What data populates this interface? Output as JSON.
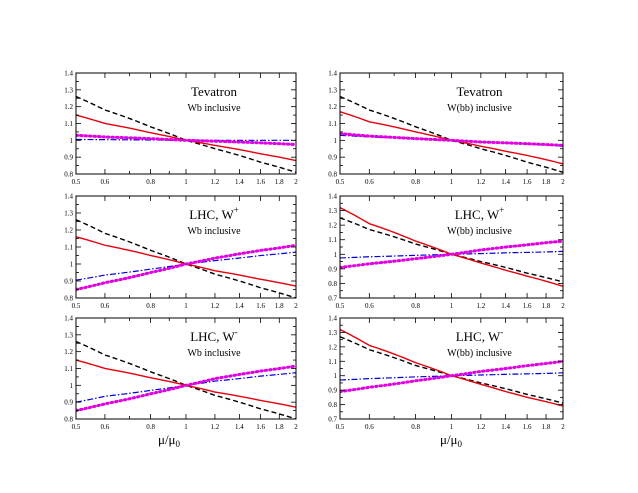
{
  "x_axis_label": "μ/μ0",
  "x_axis_main": "μ/μ",
  "x_axis_sub": "0",
  "chart_data": [
    {
      "type": "line",
      "title": "Tevatron",
      "title_sup": "",
      "subtitle": "Wb inclusive",
      "xlim": [
        0.5,
        2
      ],
      "ylim": [
        0.8,
        1.4
      ],
      "xticks": [
        "0.5",
        "0.6",
        "0.8",
        "1",
        "1.2",
        "1.4",
        "1.6",
        "1.8",
        "2"
      ],
      "yticks": [
        "0.8",
        "0.9",
        "1",
        "1.1",
        "1.2",
        "1.3",
        "1.4"
      ],
      "x": [
        0.5,
        0.6,
        0.8,
        1.0,
        1.2,
        1.4,
        1.6,
        1.8,
        2.0
      ],
      "series": [
        {
          "name": "black dashed",
          "color": "#000000",
          "dash": "5,3",
          "width": 1.4,
          "values": [
            1.26,
            1.18,
            1.08,
            1.0,
            0.95,
            0.91,
            0.87,
            0.84,
            0.81
          ]
        },
        {
          "name": "red solid",
          "color": "#e8000b",
          "dash": "",
          "width": 1.4,
          "values": [
            1.15,
            1.1,
            1.045,
            1.0,
            0.97,
            0.945,
            0.92,
            0.9,
            0.88
          ]
        },
        {
          "name": "blue dash-dot",
          "color": "#0000e0",
          "dash": "6,2,1.5,2",
          "width": 1.2,
          "values": [
            1.005,
            1.004,
            1.002,
            1.0,
            1.0,
            1.0,
            1.0,
            1.0,
            1.0
          ]
        },
        {
          "name": "magenta dotted",
          "color": "#e000e0",
          "dash": "1.5,3",
          "width": 3,
          "values": [
            1.03,
            1.02,
            1.01,
            1.0,
            0.995,
            0.99,
            0.985,
            0.98,
            0.975
          ]
        }
      ]
    },
    {
      "type": "line",
      "title": "Tevatron",
      "title_sup": "",
      "subtitle": "W(bb) inclusive",
      "xlim": [
        0.5,
        2
      ],
      "ylim": [
        0.8,
        1.4
      ],
      "xticks": [
        "0.5",
        "0.6",
        "0.8",
        "1",
        "1.2",
        "1.4",
        "1.6",
        "1.8",
        "2"
      ],
      "yticks": [
        "0.8",
        "0.9",
        "1",
        "1.1",
        "1.2",
        "1.3",
        "1.4"
      ],
      "x": [
        0.5,
        0.6,
        0.8,
        1.0,
        1.2,
        1.4,
        1.6,
        1.8,
        2.0
      ],
      "series": [
        {
          "name": "black dashed",
          "color": "#000000",
          "dash": "5,3",
          "width": 1.4,
          "values": [
            1.26,
            1.18,
            1.08,
            1.0,
            0.95,
            0.91,
            0.87,
            0.84,
            0.81
          ]
        },
        {
          "name": "red solid",
          "color": "#e8000b",
          "dash": "",
          "width": 1.4,
          "values": [
            1.17,
            1.11,
            1.05,
            1.0,
            0.965,
            0.935,
            0.91,
            0.885,
            0.86
          ]
        },
        {
          "name": "blue dash-dot",
          "color": "#0000e0",
          "dash": "6,2,1.5,2",
          "width": 1.2,
          "values": [
            1.03,
            1.02,
            1.01,
            1.0,
            0.99,
            0.985,
            0.978,
            0.972,
            0.965
          ]
        },
        {
          "name": "magenta dotted",
          "color": "#e000e0",
          "dash": "1.5,3",
          "width": 3,
          "values": [
            1.04,
            1.025,
            1.01,
            1.0,
            0.99,
            0.985,
            0.98,
            0.975,
            0.97
          ]
        }
      ]
    },
    {
      "type": "line",
      "title": "LHC, W",
      "title_sup": "+",
      "subtitle": "Wb inclusive",
      "xlim": [
        0.5,
        2
      ],
      "ylim": [
        0.8,
        1.4
      ],
      "xticks": [
        "0.5",
        "0.6",
        "0.8",
        "1",
        "1.2",
        "1.4",
        "1.6",
        "1.8",
        "2"
      ],
      "yticks": [
        "0.8",
        "0.9",
        "1",
        "1.1",
        "1.2",
        "1.3",
        "1.4"
      ],
      "x": [
        0.5,
        0.6,
        0.8,
        1.0,
        1.2,
        1.4,
        1.6,
        1.8,
        2.0
      ],
      "series": [
        {
          "name": "black dashed",
          "color": "#000000",
          "dash": "5,3",
          "width": 1.4,
          "values": [
            1.26,
            1.18,
            1.08,
            1.0,
            0.94,
            0.9,
            0.86,
            0.83,
            0.8
          ]
        },
        {
          "name": "red solid",
          "color": "#e8000b",
          "dash": "",
          "width": 1.4,
          "values": [
            1.16,
            1.11,
            1.05,
            1.0,
            0.96,
            0.935,
            0.91,
            0.89,
            0.87
          ]
        },
        {
          "name": "blue dash-dot",
          "color": "#0000e0",
          "dash": "6,2,1.5,2",
          "width": 1.2,
          "values": [
            0.905,
            0.935,
            0.97,
            1.0,
            1.02,
            1.035,
            1.05,
            1.06,
            1.07
          ]
        },
        {
          "name": "magenta dotted",
          "color": "#e000e0",
          "dash": "1.5,3",
          "width": 3,
          "values": [
            0.85,
            0.89,
            0.95,
            1.0,
            1.035,
            1.06,
            1.08,
            1.095,
            1.11
          ]
        }
      ]
    },
    {
      "type": "line",
      "title": "LHC, W",
      "title_sup": "+",
      "subtitle": "W(bb) inclusive",
      "xlim": [
        0.5,
        2
      ],
      "ylim": [
        0.7,
        1.4
      ],
      "xticks": [
        "0.5",
        "0.6",
        "0.8",
        "1",
        "1.2",
        "1.4",
        "1.6",
        "1.8",
        "2"
      ],
      "yticks": [
        "0.7",
        "0.8",
        "0.9",
        "1",
        "1.1",
        "1.2",
        "1.3",
        "1.4"
      ],
      "x": [
        0.5,
        0.6,
        0.8,
        1.0,
        1.2,
        1.4,
        1.6,
        1.8,
        2.0
      ],
      "series": [
        {
          "name": "black dashed",
          "color": "#000000",
          "dash": "5,3",
          "width": 1.4,
          "values": [
            1.25,
            1.17,
            1.07,
            1.0,
            0.95,
            0.91,
            0.87,
            0.84,
            0.81
          ]
        },
        {
          "name": "red solid",
          "color": "#e8000b",
          "dash": "",
          "width": 1.4,
          "values": [
            1.32,
            1.21,
            1.09,
            1.0,
            0.94,
            0.89,
            0.85,
            0.815,
            0.78
          ]
        },
        {
          "name": "blue dash-dot",
          "color": "#0000e0",
          "dash": "6,2,1.5,2",
          "width": 1.2,
          "values": [
            0.975,
            0.983,
            0.993,
            1.0,
            1.005,
            1.01,
            1.013,
            1.016,
            1.02
          ]
        },
        {
          "name": "magenta dotted",
          "color": "#e000e0",
          "dash": "1.5,3",
          "width": 3,
          "values": [
            0.91,
            0.935,
            0.97,
            1.0,
            1.03,
            1.05,
            1.065,
            1.08,
            1.09
          ]
        }
      ]
    },
    {
      "type": "line",
      "title": "LHC, W",
      "title_sup": "-",
      "subtitle": "Wb inclusive",
      "xlim": [
        0.5,
        2
      ],
      "ylim": [
        0.8,
        1.4
      ],
      "xticks": [
        "0.5",
        "0.6",
        "0.8",
        "1",
        "1.2",
        "1.4",
        "1.6",
        "1.8",
        "2"
      ],
      "yticks": [
        "0.8",
        "0.9",
        "1",
        "1.1",
        "1.2",
        "1.3",
        "1.4"
      ],
      "x": [
        0.5,
        0.6,
        0.8,
        1.0,
        1.2,
        1.4,
        1.6,
        1.8,
        2.0
      ],
      "series": [
        {
          "name": "black dashed",
          "color": "#000000",
          "dash": "5,3",
          "width": 1.4,
          "values": [
            1.26,
            1.18,
            1.08,
            1.0,
            0.94,
            0.9,
            0.86,
            0.83,
            0.8
          ]
        },
        {
          "name": "red solid",
          "color": "#e8000b",
          "dash": "",
          "width": 1.4,
          "values": [
            1.15,
            1.1,
            1.045,
            1.0,
            0.96,
            0.935,
            0.91,
            0.89,
            0.87
          ]
        },
        {
          "name": "blue dash-dot",
          "color": "#0000e0",
          "dash": "6,2,1.5,2",
          "width": 1.2,
          "values": [
            0.9,
            0.935,
            0.97,
            1.0,
            1.025,
            1.04,
            1.055,
            1.065,
            1.075
          ]
        },
        {
          "name": "magenta dotted",
          "color": "#e000e0",
          "dash": "1.5,3",
          "width": 3,
          "values": [
            0.85,
            0.89,
            0.95,
            1.0,
            1.04,
            1.065,
            1.085,
            1.1,
            1.115
          ]
        }
      ]
    },
    {
      "type": "line",
      "title": "LHC, W",
      "title_sup": "-",
      "subtitle": "W(bb) inclusive",
      "xlim": [
        0.5,
        2
      ],
      "ylim": [
        0.7,
        1.4
      ],
      "xticks": [
        "0.5",
        "0.6",
        "0.8",
        "1",
        "1.2",
        "1.4",
        "1.6",
        "1.8",
        "2"
      ],
      "yticks": [
        "0.7",
        "0.8",
        "0.9",
        "1",
        "1.1",
        "1.2",
        "1.3",
        "1.4"
      ],
      "x": [
        0.5,
        0.6,
        0.8,
        1.0,
        1.2,
        1.4,
        1.6,
        1.8,
        2.0
      ],
      "series": [
        {
          "name": "black dashed",
          "color": "#000000",
          "dash": "5,3",
          "width": 1.4,
          "values": [
            1.27,
            1.18,
            1.07,
            1.0,
            0.95,
            0.91,
            0.87,
            0.84,
            0.81
          ]
        },
        {
          "name": "red solid",
          "color": "#e8000b",
          "dash": "",
          "width": 1.4,
          "values": [
            1.32,
            1.21,
            1.09,
            1.0,
            0.94,
            0.89,
            0.85,
            0.82,
            0.79
          ]
        },
        {
          "name": "blue dash-dot",
          "color": "#0000e0",
          "dash": "6,2,1.5,2",
          "width": 1.2,
          "values": [
            0.97,
            0.98,
            0.992,
            1.0,
            1.005,
            1.01,
            1.013,
            1.016,
            1.02
          ]
        },
        {
          "name": "magenta dotted",
          "color": "#e000e0",
          "dash": "1.5,3",
          "width": 3,
          "values": [
            0.89,
            0.92,
            0.965,
            1.0,
            1.03,
            1.05,
            1.07,
            1.085,
            1.1
          ]
        }
      ]
    }
  ]
}
